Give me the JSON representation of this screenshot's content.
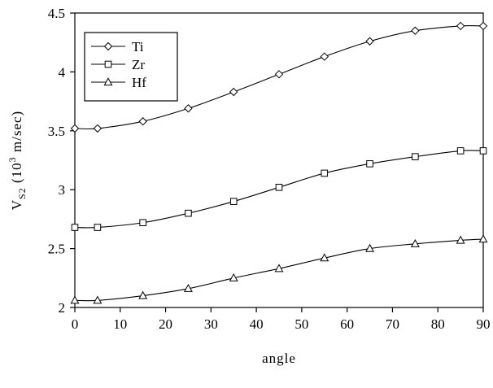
{
  "chart_data": {
    "type": "line",
    "title": "",
    "xlabel": "angle",
    "ylabel": "V",
    "ylabel_sub": "S2",
    "ylabel_rest": " (10",
    "ylabel_sup": "3",
    "ylabel_tail": " m/sec)",
    "xlim": [
      0,
      90
    ],
    "ylim": [
      2,
      4.5
    ],
    "xticks": [
      "0",
      "10",
      "20",
      "30",
      "40",
      "50",
      "60",
      "70",
      "80",
      "90"
    ],
    "yticks": [
      "2",
      "2.5",
      "3",
      "3.5",
      "4",
      "4.5"
    ],
    "grid": false,
    "legend_position": "top-left",
    "x": [
      0,
      5,
      15,
      25,
      35,
      45,
      55,
      65,
      75,
      85,
      90
    ],
    "series": [
      {
        "name": "Ti",
        "marker": "diamond",
        "values": [
          3.52,
          3.52,
          3.58,
          3.69,
          3.83,
          3.98,
          4.13,
          4.26,
          4.35,
          4.39,
          4.39
        ]
      },
      {
        "name": "Zr",
        "marker": "square",
        "values": [
          2.68,
          2.68,
          2.72,
          2.8,
          2.9,
          3.02,
          3.14,
          3.22,
          3.28,
          3.33,
          3.33
        ]
      },
      {
        "name": "Hf",
        "marker": "triangle",
        "values": [
          2.06,
          2.06,
          2.1,
          2.16,
          2.25,
          2.33,
          2.42,
          2.5,
          2.54,
          2.57,
          2.58
        ]
      }
    ]
  }
}
